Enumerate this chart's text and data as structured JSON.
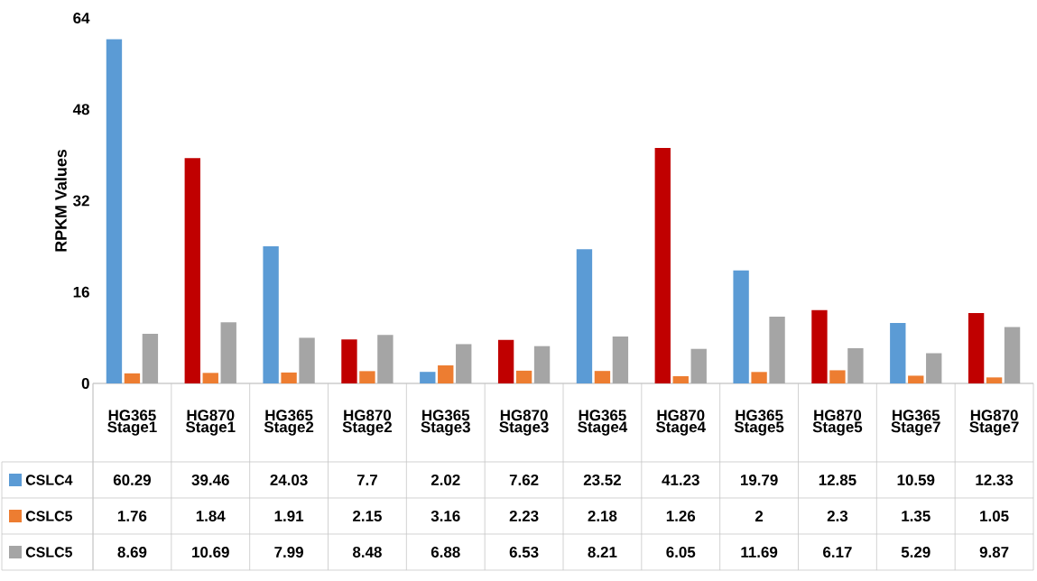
{
  "chart_data": {
    "type": "bar",
    "ylabel": "RPKM Values",
    "categories": [
      "HG365 Stage1",
      "HG870 Stage1",
      "HG365 Stage2",
      "HG870 Stage2",
      "HG365 Stage3",
      "HG870 Stage3",
      "HG365 Stage4",
      "HG870 Stage4",
      "HG365 Stage5",
      "HG870 Stage5",
      "HG365 Stage7",
      "HG870 Stage7"
    ],
    "series": [
      {
        "name": "CSLC4",
        "color": "#5b9bd5",
        "colors": [
          "#5b9bd5",
          "#c00000",
          "#5b9bd5",
          "#c00000",
          "#5b9bd5",
          "#c00000",
          "#5b9bd5",
          "#c00000",
          "#5b9bd5",
          "#c00000",
          "#5b9bd5",
          "#c00000"
        ],
        "values": [
          60.29,
          39.46,
          24.03,
          7.7,
          2.02,
          7.62,
          23.52,
          41.23,
          19.79,
          12.85,
          10.59,
          12.33
        ]
      },
      {
        "name": "CSLC5",
        "color": "#ed7d31",
        "values": [
          1.76,
          1.84,
          1.91,
          2.15,
          3.16,
          2.23,
          2.18,
          1.26,
          2,
          2.3,
          1.35,
          1.05
        ]
      },
      {
        "name": "CSLC5",
        "color": "#a5a5a5",
        "values": [
          8.69,
          10.69,
          7.99,
          8.48,
          6.88,
          6.53,
          8.21,
          6.05,
          11.69,
          6.17,
          5.29,
          9.87
        ]
      }
    ],
    "ylim": [
      0,
      64
    ],
    "yticks": [
      0,
      16,
      32,
      48,
      64
    ],
    "data_labels": true,
    "legend": "bottom"
  }
}
